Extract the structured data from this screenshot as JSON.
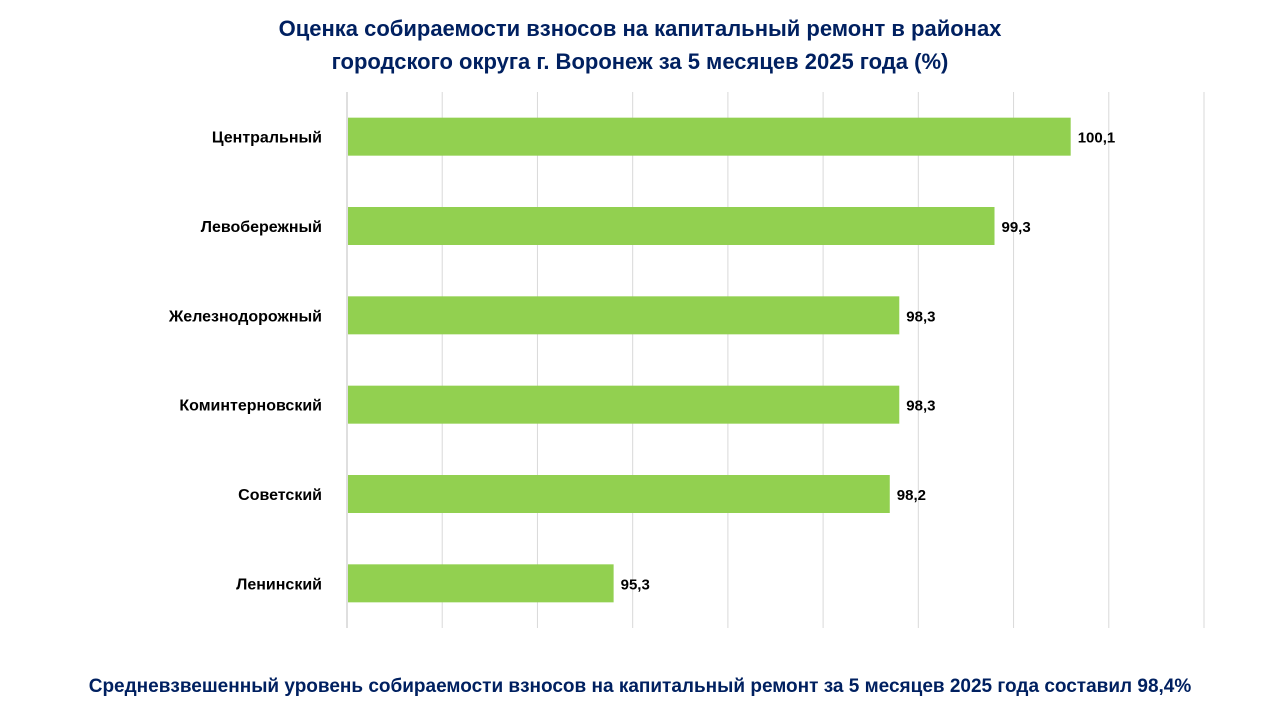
{
  "title": {
    "line1": "Оценка собираемости взносов на капитальный ремонт в районах",
    "line2": "городского округа г. Воронеж за 5 месяцев 2025 года (%)"
  },
  "footer": {
    "text": "Средневзвешенный уровень собираемости взносов на капитальный ремонт за 5 месяцев 2025 года составил 98,4%"
  },
  "chart_data": {
    "type": "bar",
    "orientation": "horizontal",
    "categories": [
      "Центральный",
      "Левобережный",
      "Железнодорожный",
      "Коминтерновский",
      "Советский",
      "Ленинский"
    ],
    "values": [
      100.1,
      99.3,
      98.3,
      98.3,
      98.2,
      95.3
    ],
    "data_labels": [
      "100,1",
      "99,3",
      "98,3",
      "98,3",
      "98,2",
      "95,3"
    ],
    "xlim": [
      92.5,
      101.5
    ],
    "grid": true,
    "bar_color": "#92d050",
    "label_color": "#000000",
    "title_color": "#002060"
  }
}
